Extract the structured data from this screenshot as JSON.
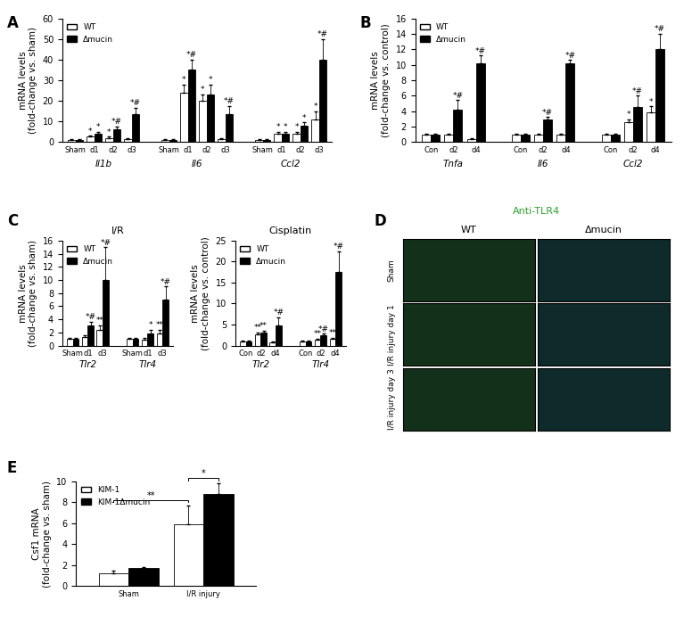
{
  "chart_data": [
    {
      "panel": "A",
      "type": "bar",
      "ylabel": "mRNA levels\n(fold-change vs. sham)",
      "categories": [
        "Sham",
        "d1",
        "d2",
        "d3",
        "Sham",
        "d1",
        "d2",
        "d3",
        "Sham",
        "d1",
        "d2",
        "d3"
      ],
      "groups": [
        "Il1b",
        "Il6",
        "Ccl2"
      ],
      "ylim": [
        0,
        60
      ],
      "yticks": [
        0,
        10,
        20,
        30,
        40,
        50,
        60
      ],
      "legend": "upper left",
      "series": [
        {
          "name": "WT",
          "color": "#ffffff",
          "values": [
            1,
            2.5,
            2,
            1.5,
            1,
            24,
            20,
            1.5,
            1,
            4,
            4,
            11
          ],
          "errors": [
            0.2,
            0.5,
            0.5,
            0.3,
            0.2,
            4,
            3,
            0.3,
            0.2,
            1,
            1,
            4
          ],
          "marks": [
            null,
            "*",
            "*",
            null,
            null,
            "*",
            "*",
            null,
            null,
            "*",
            "*",
            "*"
          ]
        },
        {
          "name": "Δmucin",
          "color": "#000000",
          "values": [
            1,
            4,
            6,
            13.5,
            1,
            35,
            23,
            13.5,
            1,
            4,
            8,
            40
          ],
          "errors": [
            0.2,
            1,
            1.5,
            3,
            0.2,
            5,
            5,
            4,
            0.2,
            1,
            1.5,
            10
          ],
          "marks": [
            null,
            "*",
            "*#",
            "*#",
            null,
            "*#",
            "*",
            "*#",
            null,
            "*",
            "*",
            "*#"
          ]
        }
      ]
    },
    {
      "panel": "B",
      "type": "bar",
      "ylabel": "mRNA levels\n(fold-change vs. control)",
      "categories": [
        "Con",
        "d2",
        "d4",
        "Con",
        "d2",
        "d4",
        "Con",
        "d2",
        "d4"
      ],
      "groups": [
        "Tnfa",
        "Il6",
        "Ccl2"
      ],
      "ylim": [
        0,
        16
      ],
      "yticks": [
        0,
        2,
        4,
        6,
        8,
        10,
        12,
        14,
        16
      ],
      "legend": "upper left",
      "series": [
        {
          "name": "WT",
          "color": "#ffffff",
          "values": [
            1,
            1,
            0.4,
            1,
            1,
            1,
            1,
            2.6,
            3.8
          ],
          "errors": [
            0.1,
            0.1,
            0.1,
            0.1,
            0.1,
            0.1,
            0.1,
            0.3,
            0.8
          ],
          "marks": [
            null,
            null,
            null,
            null,
            null,
            null,
            null,
            "*",
            "*"
          ]
        },
        {
          "name": "Δmucin",
          "color": "#000000",
          "values": [
            1,
            4.2,
            10.2,
            1,
            2.9,
            10.2,
            1,
            4.5,
            12
          ],
          "errors": [
            0.1,
            1.2,
            1,
            0.1,
            0.3,
            0.4,
            0.1,
            1.5,
            2
          ],
          "marks": [
            null,
            "*#",
            "*#",
            null,
            "*#",
            "*#",
            null,
            "*#",
            "*#"
          ]
        }
      ]
    },
    {
      "panel": "C",
      "type": "bar",
      "title": "I/R",
      "ylabel": "mRNA levels\n(fold-change vs. sham)",
      "categories": [
        "Sham",
        "d1",
        "d3",
        "Sham",
        "d1",
        "d3"
      ],
      "groups": [
        "Tlr2",
        "Tlr4"
      ],
      "ylim": [
        0,
        16
      ],
      "yticks": [
        0,
        2,
        4,
        6,
        8,
        10,
        12,
        14,
        16
      ],
      "legend": "upper left",
      "series": [
        {
          "name": "WT",
          "color": "#ffffff",
          "values": [
            1,
            1.3,
            2.4,
            1,
            0.9,
            1.9
          ],
          "errors": [
            0.1,
            0.2,
            0.7,
            0.1,
            0.2,
            0.5
          ],
          "marks": [
            null,
            null,
            "**",
            null,
            null,
            "**"
          ]
        },
        {
          "name": "Δmucin",
          "color": "#000000",
          "values": [
            1,
            3,
            10,
            1,
            1.8,
            7
          ],
          "errors": [
            0.1,
            0.6,
            5,
            0.1,
            0.6,
            2
          ],
          "marks": [
            null,
            "*#",
            "*#",
            null,
            "*",
            "*#"
          ]
        }
      ]
    },
    {
      "type": "bar",
      "title": "Cisplatin",
      "ylabel": "mRNA levels\n(fold-change vs. control)",
      "categories": [
        "Con",
        "d2",
        "d4",
        "Con",
        "d2",
        "d4"
      ],
      "groups": [
        "Tlr2",
        "Tlr4"
      ],
      "ylim": [
        0,
        25
      ],
      "yticks": [
        0,
        5,
        10,
        15,
        20,
        25
      ],
      "legend": "upper left",
      "series": [
        {
          "name": "WT",
          "color": "#ffffff",
          "values": [
            1,
            2.6,
            0.7,
            1,
            1.3,
            1.5
          ],
          "errors": [
            0.1,
            0.5,
            0.2,
            0.1,
            0.3,
            0.3
          ],
          "marks": [
            null,
            "**",
            null,
            null,
            "**",
            "**"
          ]
        },
        {
          "name": "Δmucin",
          "color": "#000000",
          "values": [
            1,
            3,
            4.8,
            1,
            2.5,
            17.5
          ],
          "errors": [
            0.1,
            0.5,
            2,
            0.1,
            0.3,
            5
          ],
          "marks": [
            null,
            "**",
            "*#",
            null,
            "*#",
            "*#"
          ]
        }
      ]
    },
    {
      "panel": "E",
      "type": "bar",
      "ylabel": "Csf1 mRNA\n(fold-change vs. sham)",
      "categories": [
        "Sham",
        "I/R injury"
      ],
      "ylim": [
        0,
        10
      ],
      "yticks": [
        0,
        2,
        4,
        6,
        8,
        10
      ],
      "legend": "upper left",
      "series": [
        {
          "name": "KIM-1",
          "color": "#ffffff",
          "values": [
            1.2,
            5.9
          ],
          "errors": [
            0.3,
            1.8
          ]
        },
        {
          "name": "KIM-1Δmucin",
          "color": "#000000",
          "values": [
            1.7,
            8.8
          ],
          "errors": [
            0.1,
            1.0
          ]
        }
      ],
      "brackets": [
        {
          "between": [
            [
              "KIM-1",
              "Sham"
            ],
            [
              "KIM-1",
              "I/R injury"
            ]
          ],
          "label": "**"
        },
        {
          "between": [
            [
              "KIM-1",
              "I/R injury"
            ],
            [
              "KIM-1Δmucin",
              "I/R injury"
            ]
          ],
          "label": "*"
        }
      ]
    }
  ],
  "micrograph": {
    "panel": "D",
    "title": "Anti-TLR4",
    "columns": [
      "WT",
      "Δmucin"
    ],
    "rows": [
      "Sham",
      "I/R injury day 1",
      "I/R injury day 3"
    ]
  }
}
